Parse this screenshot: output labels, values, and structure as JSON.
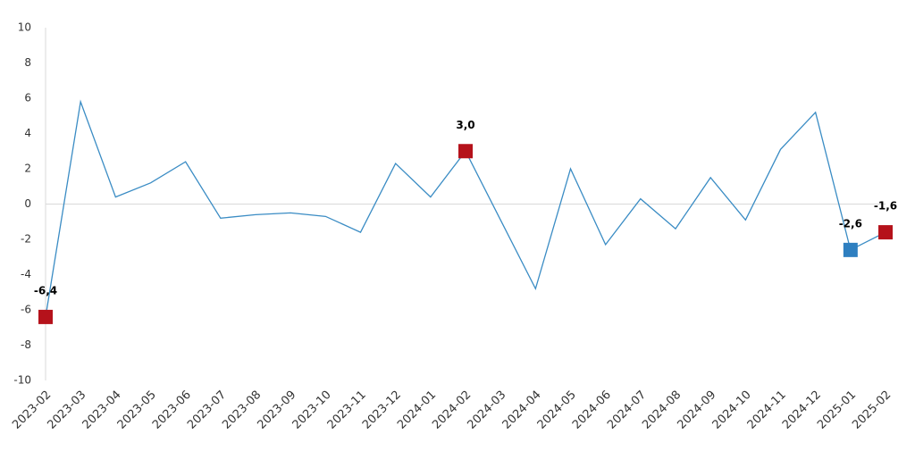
{
  "chart_data": {
    "type": "line",
    "categories": [
      "2023-02",
      "2023-03",
      "2023-04",
      "2023-05",
      "2023-06",
      "2023-07",
      "2023-08",
      "2023-09",
      "2023-10",
      "2023-11",
      "2023-12",
      "2024-01",
      "2024-02",
      "2024-03",
      "2024-04",
      "2024-05",
      "2024-06",
      "2024-07",
      "2024-08",
      "2024-09",
      "2024-10",
      "2024-11",
      "2024-12",
      "2025-01",
      "2025-02"
    ],
    "series": [
      {
        "color": "#3a8cc4",
        "values": [
          -6.4,
          5.8,
          0.4,
          1.2,
          2.4,
          -0.8,
          -0.6,
          -0.5,
          -0.7,
          -1.6,
          2.3,
          0.4,
          3.0,
          -0.9,
          -4.8,
          2.0,
          -2.3,
          0.3,
          -1.4,
          1.5,
          -0.9,
          3.1,
          5.2,
          -2.6,
          -1.6
        ],
        "value_labels": [
          "-6,4",
          null,
          null,
          null,
          null,
          null,
          null,
          null,
          null,
          null,
          null,
          null,
          "3,0",
          null,
          null,
          null,
          null,
          null,
          null,
          null,
          null,
          null,
          null,
          "-2,6",
          "-1,6"
        ],
        "marker_colors": [
          "#b5121b",
          null,
          null,
          null,
          null,
          null,
          null,
          null,
          null,
          null,
          null,
          null,
          "#b5121b",
          null,
          null,
          null,
          null,
          null,
          null,
          null,
          null,
          null,
          null,
          "#2e7fc0",
          "#b5121b"
        ]
      }
    ],
    "ylim": [
      -10,
      10
    ],
    "yticks": [
      -10,
      -8,
      -6,
      -4,
      -2,
      0,
      2,
      4,
      6,
      8,
      10
    ],
    "grid": false
  }
}
